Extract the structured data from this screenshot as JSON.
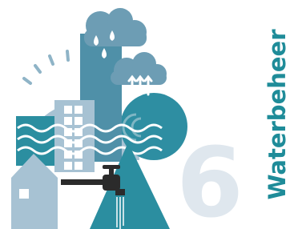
{
  "title": "Waterbeheer",
  "number": "6"
}
